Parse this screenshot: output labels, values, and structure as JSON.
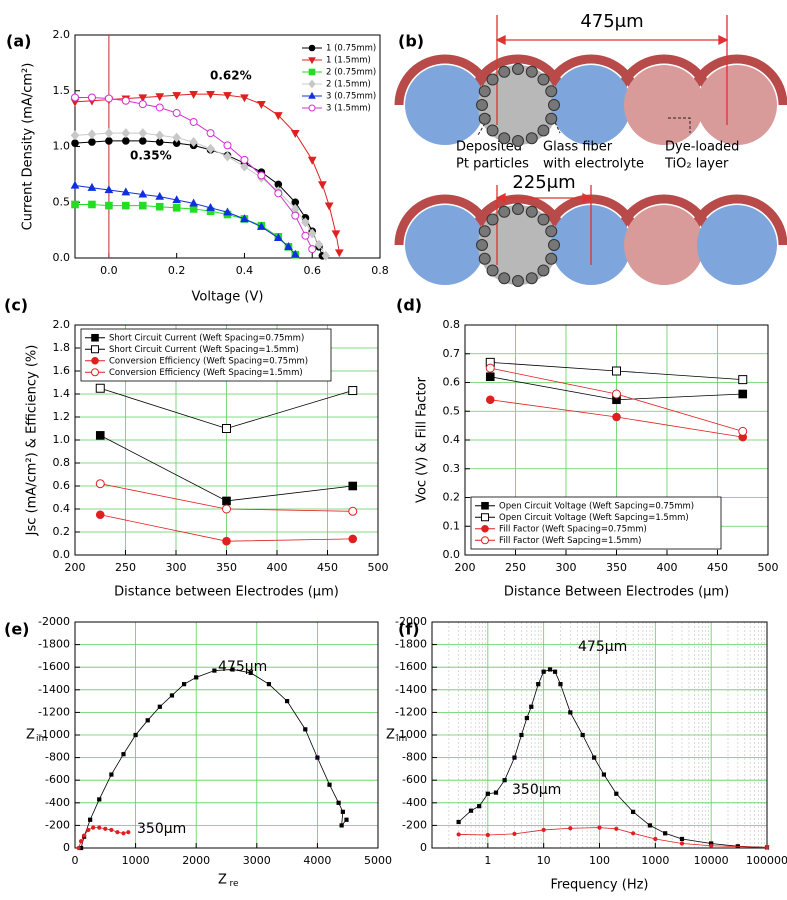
{
  "chart_data": [
    {
      "type": "line",
      "panel_label": "(a)",
      "xlabel": "Voltage (V)",
      "ylabel": "Current Density (mA/cm²)",
      "xlim": [
        -0.1,
        0.8
      ],
      "ylim": [
        0,
        2
      ],
      "xticks": [
        {
          "value": 0,
          "label": "0.0"
        },
        0.2,
        0.4,
        0.6,
        0.8
      ],
      "yticks": [
        {
          "value": 0,
          "label": "0.0"
        },
        0.5,
        {
          "value": 1,
          "label": "1.0"
        },
        1.5,
        {
          "value": 2,
          "label": "2.0"
        }
      ],
      "grid": false,
      "legend": "upper right",
      "annotations": [
        "0.62%",
        "0.35%"
      ],
      "series": [
        {
          "name": "1 (0.75mm)",
          "color": "#000000",
          "marker": "circle",
          "x": [
            -0.1,
            -0.05,
            0,
            0.05,
            0.1,
            0.15,
            0.2,
            0.25,
            0.3,
            0.35,
            0.4,
            0.45,
            0.5,
            0.55,
            0.58,
            0.6,
            0.62,
            0.63
          ],
          "values": [
            1.03,
            1.04,
            1.05,
            1.05,
            1.05,
            1.04,
            1.03,
            1.01,
            0.97,
            0.92,
            0.85,
            0.77,
            0.66,
            0.5,
            0.36,
            0.24,
            0.1,
            0.02
          ]
        },
        {
          "name": "1 (1.5mm)",
          "color": "#e02020",
          "marker": "triangle-down",
          "x": [
            -0.1,
            -0.05,
            0,
            0.05,
            0.1,
            0.15,
            0.2,
            0.25,
            0.3,
            0.35,
            0.4,
            0.45,
            0.5,
            0.55,
            0.6,
            0.63,
            0.65,
            0.67,
            0.68
          ],
          "values": [
            1.4,
            1.41,
            1.42,
            1.43,
            1.44,
            1.45,
            1.46,
            1.47,
            1.47,
            1.46,
            1.44,
            1.38,
            1.28,
            1.12,
            0.88,
            0.66,
            0.47,
            0.22,
            0.05
          ]
        },
        {
          "name": "2 (0.75mm)",
          "color": "#22dd22",
          "marker": "square",
          "x": [
            -0.1,
            -0.05,
            0,
            0.05,
            0.1,
            0.15,
            0.2,
            0.25,
            0.3,
            0.35,
            0.4,
            0.45,
            0.5,
            0.53,
            0.55
          ],
          "values": [
            0.48,
            0.48,
            0.47,
            0.47,
            0.47,
            0.46,
            0.45,
            0.44,
            0.42,
            0.39,
            0.35,
            0.29,
            0.19,
            0.1,
            0.03
          ]
        },
        {
          "name": "2 (1.5mm)",
          "color": "#c8c8c8",
          "marker": "diamond",
          "x": [
            -0.1,
            -0.05,
            0,
            0.05,
            0.1,
            0.15,
            0.2,
            0.25,
            0.3,
            0.35,
            0.4,
            0.45,
            0.5,
            0.55,
            0.58,
            0.6,
            0.62,
            0.64
          ],
          "values": [
            1.1,
            1.11,
            1.12,
            1.12,
            1.12,
            1.1,
            1.08,
            1.04,
            0.98,
            0.91,
            0.82,
            0.72,
            0.6,
            0.44,
            0.32,
            0.22,
            0.12,
            0.02
          ]
        },
        {
          "name": "3 (0.75mm)",
          "color": "#1030e0",
          "marker": "triangle",
          "x": [
            -0.1,
            -0.05,
            0,
            0.05,
            0.1,
            0.15,
            0.2,
            0.25,
            0.3,
            0.35,
            0.4,
            0.45,
            0.5,
            0.53,
            0.55
          ],
          "values": [
            0.65,
            0.63,
            0.61,
            0.59,
            0.57,
            0.55,
            0.52,
            0.49,
            0.45,
            0.41,
            0.35,
            0.28,
            0.18,
            0.1,
            0.03
          ]
        },
        {
          "name": "3 (1.5mm)",
          "color": "#d030d0",
          "marker": "circle-open",
          "x": [
            -0.1,
            -0.05,
            0,
            0.05,
            0.1,
            0.15,
            0.2,
            0.25,
            0.3,
            0.35,
            0.4,
            0.45,
            0.5,
            0.55,
            0.58,
            0.6
          ],
          "values": [
            1.44,
            1.44,
            1.43,
            1.41,
            1.38,
            1.35,
            1.3,
            1.22,
            1.12,
            1.01,
            0.88,
            0.74,
            0.58,
            0.38,
            0.2,
            0.08
          ]
        }
      ]
    },
    {
      "type": "line",
      "panel_label": "(c)",
      "xlabel": "Distance between Electrodes (μm)",
      "ylabel": "Jsc (mA/cm²) & Efficiency (%)",
      "x": [
        225,
        350,
        475
      ],
      "xlim": [
        200,
        500
      ],
      "ylim": [
        0,
        2
      ],
      "xticks": [
        200,
        250,
        300,
        350,
        400,
        450,
        500
      ],
      "yticks": [
        {
          "value": 0,
          "label": "0.0"
        },
        0.2,
        0.4,
        0.6,
        0.8,
        {
          "value": 1,
          "label": "1.0"
        },
        1.2,
        1.4,
        1.6,
        1.8,
        {
          "value": 2,
          "label": "2.0"
        }
      ],
      "grid": true,
      "legend": "upper left",
      "series": [
        {
          "name": "Short Circuit Current (Weft Spacing=0.75mm)",
          "color": "#000000",
          "marker": "square",
          "values": [
            1.04,
            0.47,
            0.6
          ]
        },
        {
          "name": "Short Circuit Current (Weft Spacing=1.5mm)",
          "color": "#000000",
          "marker": "square-open",
          "values": [
            1.45,
            1.1,
            1.43
          ]
        },
        {
          "name": "Conversion Efficiency (Weft Spacing=0.75mm)",
          "color": "#e02020",
          "marker": "circle",
          "values": [
            0.35,
            0.12,
            0.14
          ]
        },
        {
          "name": "Conversion Efficiency (Weft Spacing=1.5mm)",
          "color": "#e02020",
          "marker": "circle-open",
          "values": [
            0.62,
            0.4,
            0.38
          ]
        }
      ]
    },
    {
      "type": "line",
      "panel_label": "(d)",
      "xlabel": "Distance Between Electrodes (μm)",
      "ylabel": "Voc (V) & Fill Factor",
      "x": [
        225,
        350,
        475
      ],
      "xlim": [
        200,
        500
      ],
      "ylim": [
        0,
        0.8
      ],
      "xticks": [
        200,
        250,
        300,
        350,
        400,
        450,
        500
      ],
      "yticks": [
        {
          "value": 0,
          "label": "0.0"
        },
        0.1,
        0.2,
        0.3,
        0.4,
        0.5,
        0.6,
        0.7,
        0.8
      ],
      "grid": true,
      "legend": "lower left",
      "series": [
        {
          "name": "Open Circuit Voltage (Weft Sapcing=0.75mm)",
          "color": "#000000",
          "marker": "square",
          "values": [
            0.62,
            0.54,
            0.56
          ]
        },
        {
          "name": "Open Circuit Voltage (Weft Sapcing=1.5mm)",
          "color": "#000000",
          "marker": "square-open",
          "values": [
            0.67,
            0.64,
            0.61
          ]
        },
        {
          "name": "Fill Factor (Weft Spacing=0.75mm)",
          "color": "#e02020",
          "marker": "circle",
          "values": [
            0.54,
            0.48,
            0.41
          ]
        },
        {
          "name": "Fill Factor (Weft Sapcing=1.5mm)",
          "color": "#e02020",
          "marker": "circle-open",
          "values": [
            0.65,
            0.56,
            0.43
          ]
        }
      ]
    },
    {
      "type": "line",
      "panel_label": "(e)",
      "xlabel": "Z",
      "xlabel_sub": "re",
      "ylabel": "Z",
      "ylabel_sub": "im",
      "xlim": [
        0,
        5000
      ],
      "ylim": [
        0,
        -2000
      ],
      "xticks": [
        0,
        1000,
        2000,
        3000,
        4000,
        5000
      ],
      "yticks": [
        0,
        -200,
        -400,
        -600,
        -800,
        -1000,
        -1200,
        -1400,
        -1600,
        -1800,
        -2000
      ],
      "grid": true,
      "legend": "curve",
      "series": [
        {
          "name": "475μm",
          "color": "#000000",
          "marker": "square-small",
          "x": [
            100,
            150,
            250,
            400,
            600,
            800,
            1000,
            1200,
            1400,
            1600,
            1800,
            2000,
            2300,
            2600,
            2900,
            3200,
            3500,
            3800,
            4000,
            4200,
            4350,
            4420,
            4400,
            4480
          ],
          "values": [
            0,
            -100,
            -250,
            -430,
            -650,
            -830,
            -1000,
            -1130,
            -1250,
            -1350,
            -1450,
            -1510,
            -1570,
            -1580,
            -1550,
            -1450,
            -1300,
            -1050,
            -800,
            -560,
            -400,
            -320,
            -200,
            -250
          ]
        },
        {
          "name": "350μm",
          "color": "#e02020",
          "marker": "circle-small",
          "x": [
            60,
            100,
            150,
            220,
            300,
            400,
            500,
            600,
            700,
            800,
            880
          ],
          "values": [
            0,
            -60,
            -110,
            -160,
            -180,
            -180,
            -170,
            -160,
            -140,
            -130,
            -140
          ]
        }
      ]
    },
    {
      "type": "line",
      "panel_label": "(f)",
      "xlabel": "Frequency (Hz)",
      "ylabel": "Z",
      "ylabel_sub": "im",
      "xscale": "log",
      "xlim": [
        0.1,
        100000
      ],
      "ylim": [
        0,
        -2000
      ],
      "xticks": [
        1,
        10,
        100,
        1000,
        10000,
        100000
      ],
      "yticks": [
        0,
        -200,
        -400,
        -600,
        -800,
        -1000,
        -1200,
        -1400,
        -1600,
        -1800,
        -2000
      ],
      "grid": true,
      "legend": "curve",
      "series": [
        {
          "name": "475μm",
          "color": "#000000",
          "marker": "square-small",
          "x": [
            0.3,
            0.5,
            0.7,
            1,
            1.4,
            2,
            3,
            4,
            5,
            6,
            8,
            10,
            13,
            16,
            20,
            30,
            50,
            80,
            120,
            200,
            400,
            800,
            1500,
            3000,
            10000,
            30000,
            100000
          ],
          "values": [
            -230,
            -330,
            -370,
            -480,
            -490,
            -600,
            -800,
            -1000,
            -1150,
            -1250,
            -1450,
            -1560,
            -1580,
            -1560,
            -1450,
            -1200,
            -1000,
            -800,
            -650,
            -480,
            -320,
            -200,
            -130,
            -80,
            -40,
            -15,
            -5
          ]
        },
        {
          "name": "350μm",
          "color": "#e02020",
          "marker": "circle-small",
          "x": [
            0.3,
            1,
            3,
            10,
            30,
            100,
            200,
            400,
            1000,
            3000,
            10000,
            100000
          ],
          "values": [
            -120,
            -115,
            -125,
            -160,
            -175,
            -180,
            -170,
            -130,
            -80,
            -40,
            -20,
            -5
          ]
        }
      ]
    }
  ],
  "diagram": {
    "panel_label": "(b)",
    "dimensions": [
      "475μm",
      "225μm"
    ],
    "labels": [
      [
        "Deposited",
        "Pt particles"
      ],
      [
        "Glass fiber",
        "with electrolyte"
      ],
      [
        "Dye-loaded",
        "TiO₂ layer"
      ]
    ]
  }
}
